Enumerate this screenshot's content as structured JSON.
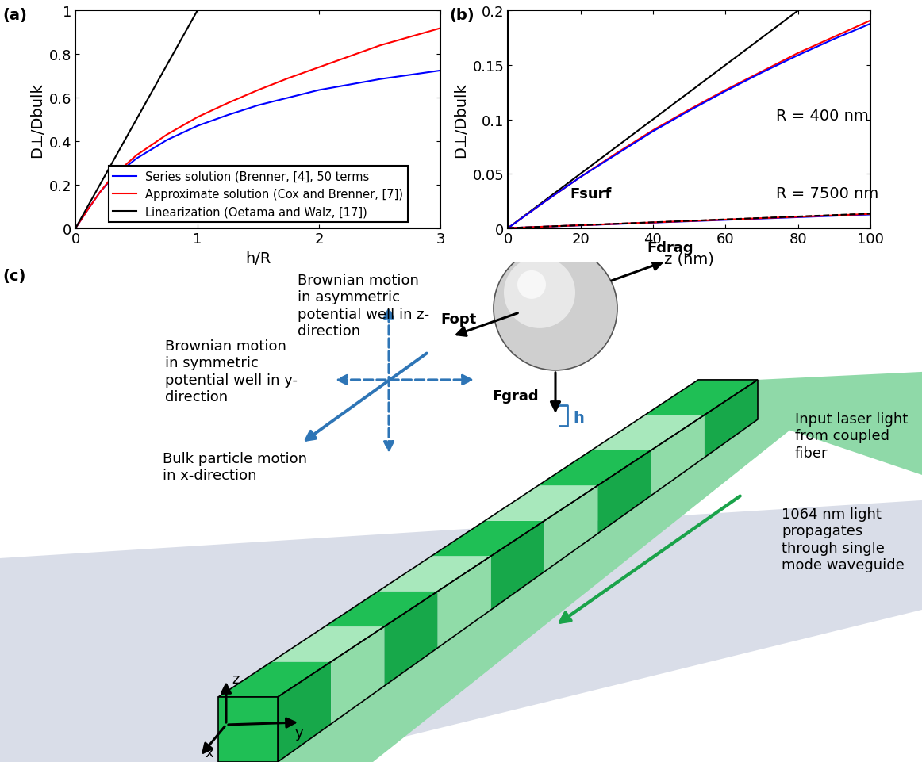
{
  "chart_data": [
    {
      "type": "line",
      "panel_label": "(a)",
      "x_label": "h/R",
      "y_label": "D⊥/Dbulk",
      "xlim": [
        0,
        3
      ],
      "xticks": [
        0,
        1,
        2,
        3
      ],
      "ylim": [
        0,
        1
      ],
      "yticks": [
        0,
        0.2,
        0.4,
        0.6,
        0.8,
        1
      ],
      "legend": "lower center",
      "series": [
        {
          "name": "Series solution (Brenner, [4], 50 terms",
          "color": "#0000ff",
          "line_style": "solid",
          "x": [
            0,
            0.1,
            0.2,
            0.3,
            0.5,
            0.75,
            1,
            1.25,
            1.5,
            1.75,
            2,
            2.25,
            2.5,
            2.75,
            3
          ],
          "values": [
            0,
            0.085,
            0.165,
            0.23,
            0.32,
            0.405,
            0.47,
            0.52,
            0.565,
            0.6,
            0.635,
            0.66,
            0.685,
            0.705,
            0.725
          ]
        },
        {
          "name": "Approximate solution (Cox and Brenner, [7])",
          "color": "#ff0000",
          "line_style": "solid",
          "x": [
            0,
            0.1,
            0.2,
            0.3,
            0.5,
            0.75,
            1,
            1.25,
            1.5,
            1.75,
            2,
            2.25,
            2.5,
            2.75,
            3
          ],
          "values": [
            0,
            0.085,
            0.165,
            0.235,
            0.335,
            0.43,
            0.51,
            0.575,
            0.635,
            0.69,
            0.74,
            0.79,
            0.84,
            0.88,
            0.92
          ]
        },
        {
          "name": "Linearization (Oetama and Walz, [17])",
          "color": "#000000",
          "line_style": "solid",
          "x": [
            0,
            1
          ],
          "values": [
            0,
            1
          ]
        }
      ]
    },
    {
      "type": "line",
      "panel_label": "(b)",
      "x_label": "z (nm)",
      "y_label": "D⊥/Dbulk",
      "xlim": [
        0,
        100
      ],
      "xticks": [
        0,
        20,
        40,
        60,
        80,
        100
      ],
      "ylim": [
        0,
        0.2
      ],
      "yticks": [
        0,
        0.05,
        0.1,
        0.15,
        0.2
      ],
      "annotations": [
        "R = 400 nm",
        "R = 7500 nm"
      ],
      "series": [
        {
          "color": "#000000",
          "line_style": "solid",
          "x": [
            0,
            80
          ],
          "values": [
            0,
            0.2
          ]
        },
        {
          "color": "#ff0000",
          "line_style": "solid",
          "x": [
            0,
            10,
            20,
            30,
            40,
            50,
            60,
            70,
            80,
            90,
            100
          ],
          "values": [
            0,
            0.024,
            0.047,
            0.069,
            0.09,
            0.109,
            0.127,
            0.144,
            0.161,
            0.176,
            0.191
          ]
        },
        {
          "color": "#0000ff",
          "line_style": "solid",
          "x": [
            0,
            10,
            20,
            30,
            40,
            50,
            60,
            70,
            80,
            90,
            100
          ],
          "values": [
            0,
            0.024,
            0.047,
            0.068,
            0.089,
            0.108,
            0.126,
            0.143,
            0.159,
            0.174,
            0.188
          ]
        },
        {
          "color": "#0000ff",
          "line_style": "solid",
          "x": [
            0,
            100
          ],
          "values": [
            0,
            0.0125
          ]
        },
        {
          "color": "#ff0000",
          "line_style": "solid",
          "x": [
            0,
            100
          ],
          "values": [
            0,
            0.013
          ]
        },
        {
          "color": "#000000",
          "line_style": "dashed",
          "x": [
            0,
            100
          ],
          "values": [
            0,
            0.0133
          ]
        }
      ]
    }
  ],
  "diagram": {
    "panel_label": "(c)",
    "forces": {
      "surf": "Fsurf",
      "drag": "Fdrag",
      "opt": "Fopt",
      "grad": "Fgrad"
    },
    "gap_label": "h",
    "motion_z": "Brownian motion\nin asymmetric\npotential well in z-\ndirection",
    "motion_y": "Brownian motion\nin symmetric\npotential well in y-\ndirection",
    "motion_x": "Bulk particle motion\nin x-direction",
    "input_light": "Input laser light\nfrom coupled\nfiber",
    "propagation": "1064 nm light\npropagates\nthrough single\nmode waveguide",
    "axes": {
      "x": "x",
      "y": "y",
      "z": "z"
    }
  }
}
